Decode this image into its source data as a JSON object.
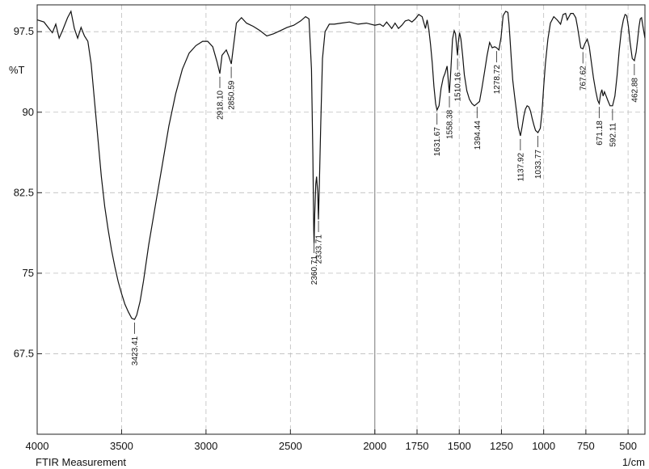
{
  "chart_data": {
    "type": "line",
    "title": "",
    "xlabel": "FTIR Measurement",
    "xunit": "1/cm",
    "ylabel": "%T",
    "x_reversed": true,
    "xlim": [
      4000,
      400
    ],
    "ylim": [
      60,
      100
    ],
    "grid": true,
    "xticks": [
      {
        "value": 4000,
        "label": "4000"
      },
      {
        "value": 3500,
        "label": "3500"
      },
      {
        "value": 3000,
        "label": "3000"
      },
      {
        "value": 2500,
        "label": "2500"
      },
      {
        "value": 2000,
        "label": "2000"
      },
      {
        "value": 1750,
        "label": "1750"
      },
      {
        "value": 1500,
        "label": "1500"
      },
      {
        "value": 1250,
        "label": "1250"
      },
      {
        "value": 1000,
        "label": "1000"
      },
      {
        "value": 750,
        "label": "750"
      },
      {
        "value": 500,
        "label": "500"
      }
    ],
    "yticks": [
      {
        "value": 97.5,
        "label": "97.5"
      },
      {
        "value": 90,
        "label": "90"
      },
      {
        "value": 82.5,
        "label": "82.5"
      },
      {
        "value": 75,
        "label": "75"
      },
      {
        "value": 67.5,
        "label": "67.5"
      }
    ],
    "series": [
      {
        "points": [
          [
            4000,
            98.6
          ],
          [
            3960,
            98.4
          ],
          [
            3930,
            97.8
          ],
          [
            3910,
            97.4
          ],
          [
            3890,
            98.2
          ],
          [
            3870,
            96.9
          ],
          [
            3850,
            97.6
          ],
          [
            3820,
            98.8
          ],
          [
            3800,
            99.4
          ],
          [
            3780,
            97.8
          ],
          [
            3760,
            96.9
          ],
          [
            3740,
            97.9
          ],
          [
            3720,
            97.1
          ],
          [
            3700,
            96.6
          ],
          [
            3680,
            94.5
          ],
          [
            3660,
            91.0
          ],
          [
            3640,
            87.5
          ],
          [
            3620,
            84.0
          ],
          [
            3600,
            81.2
          ],
          [
            3580,
            79.1
          ],
          [
            3560,
            77.2
          ],
          [
            3540,
            75.6
          ],
          [
            3520,
            74.2
          ],
          [
            3500,
            73.1
          ],
          [
            3480,
            72.1
          ],
          [
            3460,
            71.4
          ],
          [
            3440,
            70.8
          ],
          [
            3423,
            70.7
          ],
          [
            3410,
            71.1
          ],
          [
            3390,
            72.4
          ],
          [
            3370,
            74.3
          ],
          [
            3340,
            77.6
          ],
          [
            3300,
            81.3
          ],
          [
            3260,
            85.0
          ],
          [
            3220,
            88.7
          ],
          [
            3180,
            91.7
          ],
          [
            3140,
            94.0
          ],
          [
            3100,
            95.5
          ],
          [
            3060,
            96.2
          ],
          [
            3020,
            96.6
          ],
          [
            2990,
            96.6
          ],
          [
            2960,
            96.1
          ],
          [
            2935,
            94.7
          ],
          [
            2918,
            93.6
          ],
          [
            2905,
            95.3
          ],
          [
            2880,
            95.8
          ],
          [
            2865,
            95.2
          ],
          [
            2850,
            94.5
          ],
          [
            2840,
            95.8
          ],
          [
            2820,
            98.3
          ],
          [
            2790,
            98.8
          ],
          [
            2760,
            98.3
          ],
          [
            2720,
            98.0
          ],
          [
            2680,
            97.6
          ],
          [
            2640,
            97.1
          ],
          [
            2600,
            97.3
          ],
          [
            2560,
            97.6
          ],
          [
            2520,
            97.9
          ],
          [
            2480,
            98.1
          ],
          [
            2440,
            98.5
          ],
          [
            2410,
            98.9
          ],
          [
            2390,
            98.7
          ],
          [
            2375,
            94.0
          ],
          [
            2367,
            86.0
          ],
          [
            2362,
            79.0
          ],
          [
            2360,
            77.8
          ],
          [
            2356,
            80.5
          ],
          [
            2350,
            83.3
          ],
          [
            2345,
            84.0
          ],
          [
            2338,
            82.4
          ],
          [
            2334,
            80.0
          ],
          [
            2328,
            83.8
          ],
          [
            2320,
            89.0
          ],
          [
            2310,
            95.0
          ],
          [
            2295,
            97.5
          ],
          [
            2270,
            98.2
          ],
          [
            2240,
            98.2
          ],
          [
            2200,
            98.3
          ],
          [
            2150,
            98.4
          ],
          [
            2100,
            98.2
          ],
          [
            2050,
            98.3
          ],
          [
            2000,
            98.1
          ],
          [
            1970,
            98.2
          ],
          [
            1950,
            98.0
          ],
          [
            1930,
            98.4
          ],
          [
            1900,
            97.8
          ],
          [
            1880,
            98.3
          ],
          [
            1860,
            97.8
          ],
          [
            1840,
            98.1
          ],
          [
            1820,
            98.5
          ],
          [
            1800,
            98.6
          ],
          [
            1780,
            98.4
          ],
          [
            1760,
            98.7
          ],
          [
            1740,
            99.1
          ],
          [
            1720,
            98.9
          ],
          [
            1700,
            97.8
          ],
          [
            1690,
            98.6
          ],
          [
            1680,
            97.7
          ],
          [
            1670,
            96.3
          ],
          [
            1660,
            94.6
          ],
          [
            1650,
            92.4
          ],
          [
            1640,
            90.8
          ],
          [
            1631.67,
            90.2
          ],
          [
            1620,
            90.6
          ],
          [
            1608,
            92.2
          ],
          [
            1595,
            93.2
          ],
          [
            1585,
            93.6
          ],
          [
            1572,
            94.3
          ],
          [
            1565,
            93.0
          ],
          [
            1558.38,
            91.8
          ],
          [
            1550,
            93.9
          ],
          [
            1540,
            96.8
          ],
          [
            1530,
            97.6
          ],
          [
            1522,
            97.3
          ],
          [
            1515,
            96.0
          ],
          [
            1510.16,
            95.3
          ],
          [
            1505,
            96.6
          ],
          [
            1498,
            97.4
          ],
          [
            1490,
            96.8
          ],
          [
            1480,
            95.3
          ],
          [
            1470,
            93.5
          ],
          [
            1455,
            92.0
          ],
          [
            1440,
            91.2
          ],
          [
            1425,
            90.8
          ],
          [
            1410,
            90.6
          ],
          [
            1394.44,
            90.8
          ],
          [
            1380,
            91.0
          ],
          [
            1365,
            92.3
          ],
          [
            1350,
            93.8
          ],
          [
            1335,
            95.3
          ],
          [
            1320,
            96.5
          ],
          [
            1305,
            96.0
          ],
          [
            1290,
            96.1
          ],
          [
            1278.72,
            96.0
          ],
          [
            1265,
            95.8
          ],
          [
            1252,
            97.0
          ],
          [
            1240,
            99.0
          ],
          [
            1225,
            99.4
          ],
          [
            1212,
            99.3
          ],
          [
            1205,
            98.2
          ],
          [
            1200,
            97.0
          ],
          [
            1192,
            95.0
          ],
          [
            1183,
            93.0
          ],
          [
            1172,
            91.5
          ],
          [
            1160,
            90.0
          ],
          [
            1150,
            88.6
          ],
          [
            1137.92,
            87.8
          ],
          [
            1128,
            88.6
          ],
          [
            1118,
            89.6
          ],
          [
            1108,
            90.3
          ],
          [
            1098,
            90.6
          ],
          [
            1088,
            90.5
          ],
          [
            1078,
            90.1
          ],
          [
            1068,
            89.4
          ],
          [
            1058,
            88.8
          ],
          [
            1048,
            88.3
          ],
          [
            1033.77,
            88.1
          ],
          [
            1020,
            88.5
          ],
          [
            1010,
            90.0
          ],
          [
            1000,
            92.4
          ],
          [
            990,
            94.5
          ],
          [
            975,
            96.8
          ],
          [
            960,
            98.3
          ],
          [
            940,
            98.9
          ],
          [
            920,
            98.6
          ],
          [
            900,
            98.2
          ],
          [
            885,
            99.1
          ],
          [
            870,
            99.2
          ],
          [
            860,
            98.6
          ],
          [
            850,
            98.9
          ],
          [
            840,
            99.2
          ],
          [
            825,
            99.2
          ],
          [
            810,
            98.8
          ],
          [
            800,
            98.0
          ],
          [
            790,
            97.0
          ],
          [
            780,
            96.0
          ],
          [
            767.62,
            95.9
          ],
          [
            755,
            96.4
          ],
          [
            742,
            96.8
          ],
          [
            730,
            96.1
          ],
          [
            718,
            94.7
          ],
          [
            705,
            93.2
          ],
          [
            692,
            92.0
          ],
          [
            680,
            91.1
          ],
          [
            671.18,
            90.8
          ],
          [
            663,
            91.7
          ],
          [
            655,
            92.1
          ],
          [
            648,
            91.5
          ],
          [
            640,
            91.9
          ],
          [
            630,
            91.5
          ],
          [
            620,
            91.1
          ],
          [
            607,
            90.6
          ],
          [
            592.11,
            90.6
          ],
          [
            578,
            91.5
          ],
          [
            565,
            93.4
          ],
          [
            552,
            95.8
          ],
          [
            540,
            97.6
          ],
          [
            528,
            98.6
          ],
          [
            518,
            99.1
          ],
          [
            508,
            99.0
          ],
          [
            498,
            98.0
          ],
          [
            488,
            96.5
          ],
          [
            475,
            95.0
          ],
          [
            462.88,
            94.8
          ],
          [
            452,
            95.6
          ],
          [
            443,
            96.8
          ],
          [
            435,
            98.0
          ],
          [
            428,
            98.7
          ],
          [
            420,
            98.8
          ],
          [
            412,
            98.0
          ],
          [
            400,
            96.9
          ]
        ]
      }
    ],
    "peak_labels": [
      {
        "x": 3423.41,
        "label": "3423.41"
      },
      {
        "x": 2918.1,
        "label": "2918.10"
      },
      {
        "x": 2850.59,
        "label": "2850.59"
      },
      {
        "x": 2360.71,
        "label": "2360.71"
      },
      {
        "x": 2333.71,
        "label": "2333.71"
      },
      {
        "x": 1631.67,
        "label": "1631.67"
      },
      {
        "x": 1558.38,
        "label": "1558.38"
      },
      {
        "x": 1510.16,
        "label": "1510.16"
      },
      {
        "x": 1394.44,
        "label": "1394.44"
      },
      {
        "x": 1278.72,
        "label": "1278.72"
      },
      {
        "x": 1137.92,
        "label": "1137.92"
      },
      {
        "x": 1033.77,
        "label": "1033.77"
      },
      {
        "x": 767.62,
        "label": "767.62"
      },
      {
        "x": 671.18,
        "label": "671.18"
      },
      {
        "x": 592.11,
        "label": "592.11"
      },
      {
        "x": 462.88,
        "label": "462.88"
      }
    ]
  }
}
